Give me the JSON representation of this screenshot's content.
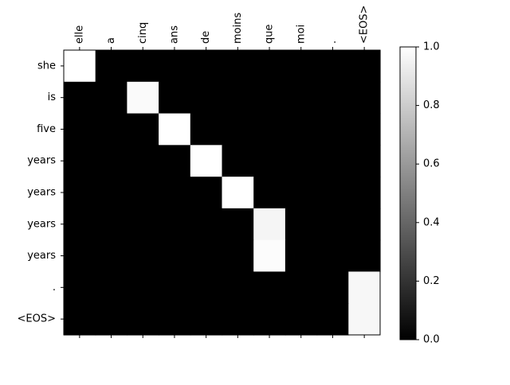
{
  "chart_data": {
    "type": "heatmap",
    "colormap": "gray",
    "x_tick_position": "top",
    "x_labels": [
      "elle",
      "a",
      "cinq",
      "ans",
      "de",
      "moins",
      "que",
      "moi",
      ".",
      "<EOS>"
    ],
    "y_labels": [
      "she",
      "is",
      "five",
      "years",
      "years",
      "years",
      "years",
      ".",
      "<EOS>"
    ],
    "values": [
      [
        1.0,
        0,
        0,
        0,
        0,
        0,
        0,
        0,
        0,
        0
      ],
      [
        0,
        0,
        0.98,
        0,
        0,
        0,
        0,
        0,
        0,
        0
      ],
      [
        0,
        0,
        0,
        1.0,
        0,
        0,
        0,
        0,
        0,
        0
      ],
      [
        0,
        0,
        0,
        0,
        1.0,
        0,
        0,
        0,
        0,
        0
      ],
      [
        0,
        0,
        0,
        0,
        0,
        1.0,
        0,
        0,
        0,
        0
      ],
      [
        0,
        0,
        0,
        0,
        0,
        0,
        0.96,
        0,
        0,
        0
      ],
      [
        0,
        0,
        0,
        0,
        0,
        0,
        0.99,
        0,
        0,
        0
      ],
      [
        0,
        0,
        0,
        0,
        0,
        0,
        0,
        0,
        0,
        0.97
      ],
      [
        0,
        0,
        0,
        0,
        0,
        0,
        0,
        0,
        0,
        0.97
      ]
    ],
    "colorbar": {
      "range": [
        0.0,
        1.0
      ],
      "ticks": [
        "0.0",
        "0.2",
        "0.4",
        "0.6",
        "0.8",
        "1.0"
      ]
    }
  }
}
